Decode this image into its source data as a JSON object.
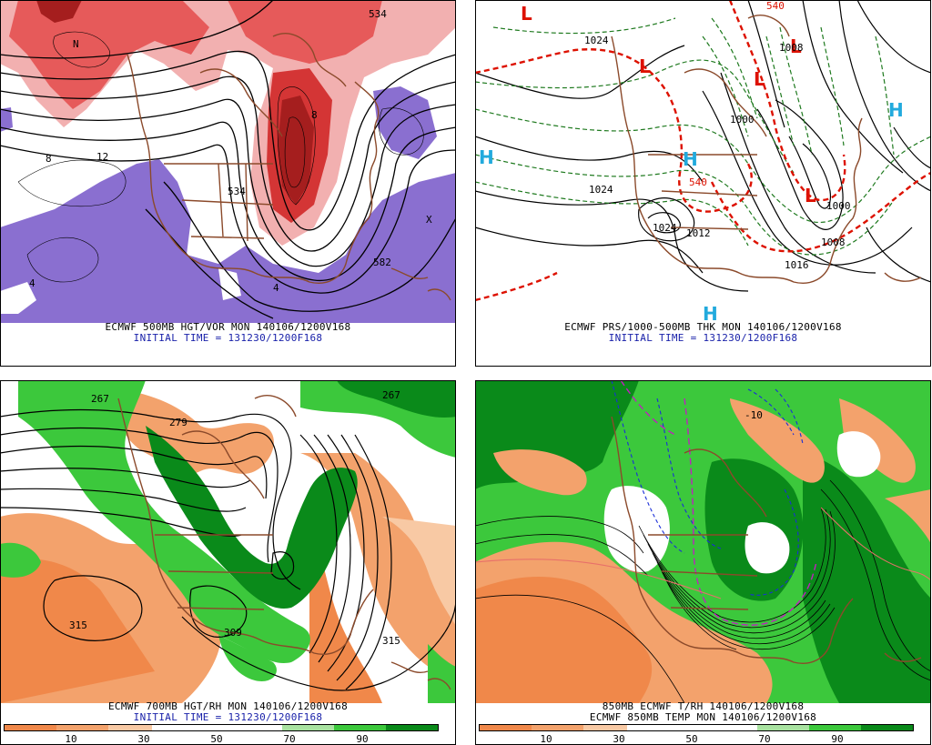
{
  "panels": [
    {
      "title": "ECMWF 500MB HGT/VOR MON 140106/1200V168",
      "subtitle": "INITIAL TIME = 131230/1200F168",
      "labels": [
        "582",
        "534",
        "534",
        "8",
        "8",
        "4",
        "4",
        "N",
        "X",
        "12"
      ]
    },
    {
      "title": "ECMWF PRS/1000-500MB THK MON 140106/1200V168",
      "subtitle": "INITIAL TIME = 131230/1200F168",
      "pressure_labels": [
        "1024",
        "1024",
        "1024",
        "1012",
        "1008",
        "1008",
        "1000",
        "1000",
        "1016"
      ],
      "thickness_labels": [
        "540",
        "540"
      ],
      "centers": [
        {
          "type": "L",
          "color": "#dd1100"
        },
        {
          "type": "L",
          "color": "#dd1100"
        },
        {
          "type": "L",
          "color": "#dd1100"
        },
        {
          "type": "L",
          "color": "#dd1100"
        },
        {
          "type": "L",
          "color": "#dd1100"
        },
        {
          "type": "H",
          "color": "#22aadd"
        },
        {
          "type": "H",
          "color": "#22aadd"
        },
        {
          "type": "H",
          "color": "#22aadd"
        },
        {
          "type": "H",
          "color": "#22aadd"
        }
      ]
    },
    {
      "title": "ECMWF 700MB HGT/RH MON 140106/1200V168",
      "subtitle": "INITIAL TIME = 131230/1200F168",
      "labels": [
        "315",
        "315",
        "309",
        "279",
        "267",
        "267"
      ]
    },
    {
      "title": "850MB ECMWF T/RH 140106/1200V168",
      "subtitle": "ECMWF 850MB TEMP MON 140106/1200V168",
      "labels": [
        "-10"
      ]
    }
  ],
  "colorbar": {
    "ticks": [
      "10",
      "30",
      "50",
      "70",
      "90"
    ],
    "colors": [
      "#f0884a",
      "#f3a26c",
      "#f8c9a4",
      "#ffffff",
      "#ffffff",
      "#ffffff",
      "#a8e2a0",
      "#3cc83c",
      "#0a8a1a"
    ]
  }
}
